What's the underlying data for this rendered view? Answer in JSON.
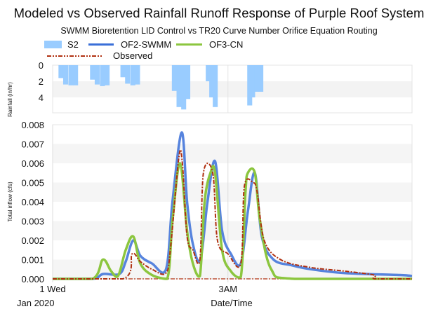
{
  "chart_data": [
    {
      "type": "bar",
      "panel": "rainfall",
      "title": "Modeled vs Observed Rainfall Runoff Response of Purple Roof System",
      "subtitle": "SWMM Bioretention LID Control vs TR20 Curve Number Orifice Equation Routing",
      "ylabel": "Rainfall (in/hr)",
      "ylim": [
        0,
        6
      ],
      "y_inverted": true,
      "yticks": [
        "0",
        "2",
        "4"
      ],
      "grid": true,
      "color": "#99ccff",
      "series": [
        {
          "name": "S2",
          "x": [
            0.1,
            0.18,
            0.27,
            0.35,
            0.64,
            0.72,
            0.81,
            0.89,
            1.16,
            1.24,
            1.33,
            1.41,
            2.04,
            2.12,
            2.2,
            2.27,
            2.62,
            2.68,
            2.74,
            3.33,
            3.38,
            3.45,
            3.52
          ],
          "values": [
            1.6,
            2.4,
            2.5,
            2.5,
            1.8,
            2.4,
            2.6,
            2.5,
            1.5,
            2.3,
            2.5,
            2.4,
            3.2,
            5.2,
            5.5,
            4.2,
            2.0,
            4.0,
            5.2,
            5.0,
            4.0,
            3.3,
            3.3
          ]
        }
      ]
    },
    {
      "type": "line",
      "panel": "inflow",
      "xlabel": "Date/Time",
      "ylabel": "Total inflow (cfs)",
      "xticks": [
        {
          "x": 0,
          "label": "1 Wed"
        },
        {
          "x": 3,
          "label": "3AM"
        }
      ],
      "xsub": "Jan 2020",
      "xlim": [
        0,
        6.15
      ],
      "ylim": [
        0,
        0.008
      ],
      "yticks": [
        "0.000",
        "0.001",
        "0.002",
        "0.003",
        "0.004",
        "0.005",
        "0.006",
        "0.007",
        "0.008"
      ],
      "grid": true,
      "legend": "top",
      "series": [
        {
          "name": "OF2-SWMM",
          "color": "#3a6fd8",
          "style": "solid",
          "x": [
            0,
            0.68,
            0.86,
            1.14,
            1.25,
            1.38,
            1.5,
            1.7,
            1.94,
            2.05,
            2.21,
            2.3,
            2.4,
            2.53,
            2.65,
            2.78,
            2.9,
            3.05,
            3.22,
            3.34,
            3.46,
            3.58,
            3.78,
            4.1,
            4.42,
            5.0,
            5.94,
            6.15
          ],
          "values": [
            0,
            0,
            0.00025,
            0.00025,
            0.0009,
            0.002,
            0.0012,
            0.0008,
            0.0005,
            0.004,
            0.0076,
            0.004,
            0.0018,
            0.001,
            0.004,
            0.0061,
            0.0025,
            0.0013,
            0.0008,
            0.0035,
            0.0055,
            0.0022,
            0.001,
            0.0007,
            0.0005,
            0.0003,
            0.0002,
            0.00015
          ]
        },
        {
          "name": "OF3-CN",
          "color": "#8cc63f",
          "style": "solid",
          "x": [
            0,
            0.68,
            0.86,
            1.0,
            1.12,
            1.25,
            1.38,
            1.5,
            1.7,
            1.96,
            2.05,
            2.18,
            2.3,
            2.4,
            2.52,
            2.6,
            2.7,
            2.78,
            2.9,
            3.05,
            3.22,
            3.3,
            3.34,
            3.46,
            3.55,
            3.74,
            4.14,
            6.15
          ],
          "values": [
            0,
            0,
            0.001,
            0.0004,
            0.00015,
            0.0015,
            0.0022,
            0.0008,
            0.0002,
            0,
            0.003,
            0.006,
            0.0025,
            0.0008,
            0.00015,
            0.004,
            0.0055,
            0.0055,
            0.0015,
            0.0004,
            0.0001,
            0.0045,
            0.0055,
            0.0055,
            0.003,
            0.0005,
            0,
            0
          ]
        },
        {
          "name": "Observed",
          "color": "#b03010",
          "style": "dash-dot",
          "x": [
            0,
            1.2,
            1.36,
            1.5,
            1.7,
            1.94,
            2.02,
            2.16,
            2.22,
            2.3,
            2.4,
            2.52,
            2.58,
            2.74,
            2.82,
            3.0,
            3.22,
            3.28,
            3.43,
            3.5,
            3.62,
            3.9,
            4.4,
            5.0,
            5.5,
            5.52,
            6.15
          ],
          "values": [
            0,
            0,
            0.0013,
            0.0009,
            0.0005,
            0.0003,
            0.0017,
            0.0063,
            0.006,
            0.0022,
            0.0015,
            0.001,
            0.0055,
            0.0055,
            0.002,
            0.0013,
            0.0008,
            0.0048,
            0.005,
            0.0045,
            0.002,
            0.001,
            0.0006,
            0.0004,
            0.0002,
            0,
            0
          ]
        }
      ]
    }
  ]
}
